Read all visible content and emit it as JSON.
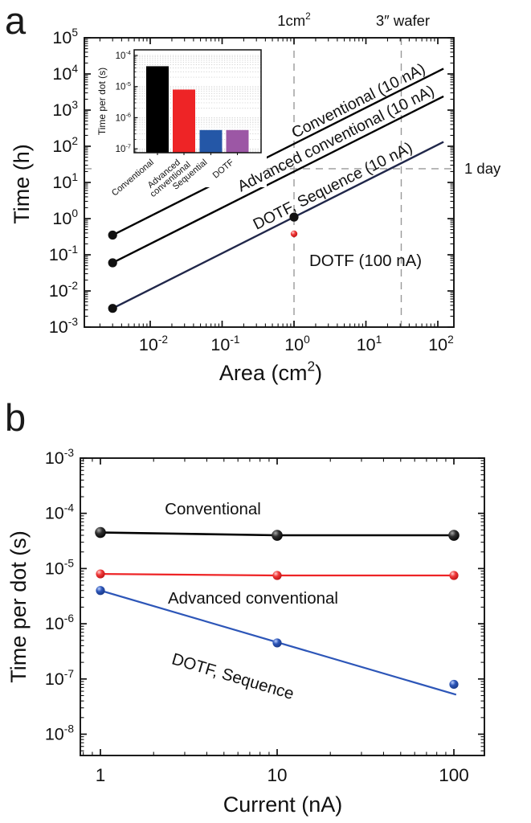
{
  "panels": {
    "a": {
      "letter": "a"
    },
    "b": {
      "letter": "b"
    }
  },
  "colors": {
    "black": "#000000",
    "red": "#ee2426",
    "blue": "#2d56b8",
    "navy_line": "#20274a",
    "purple": "#9c57a5",
    "inset_blue": "#2457a7",
    "dash_gray": "#999999"
  },
  "chart_data": [
    {
      "id": "panel-a",
      "type": "line",
      "xlabel": "Area (cm^{2})",
      "ylabel": "Time (h)",
      "xscale": "log",
      "yscale": "log",
      "xlim": [
        0.0012,
        165
      ],
      "ylim": [
        0.001,
        100000
      ],
      "x_tick_values": [
        0.01,
        0.1,
        1,
        10,
        100
      ],
      "x_tick_labels": [
        "10^{-2}",
        "10^{-1}",
        "10^{0}",
        "10^{1}",
        "10^{2}"
      ],
      "y_tick_values": [
        100000,
        10000,
        1000,
        100,
        10,
        1,
        0.1,
        0.01,
        0.001
      ],
      "y_tick_labels": [
        "10^{5}",
        "10^{4}",
        "10^{3}",
        "10^{2}",
        "10^{1}",
        "10^{0}",
        "10^{-1}",
        "10^{-2}",
        "10^{-3}"
      ],
      "grid": false,
      "series": [
        {
          "name": "Conventional (10 nA)",
          "color": "#000000",
          "line": {
            "x": [
              0.003,
              120
            ],
            "y": [
              0.35,
              14000
            ]
          },
          "points": {
            "x": [
              0.003
            ],
            "y": [
              0.35
            ]
          }
        },
        {
          "name": "Advanced conventional (10 nA)",
          "color": "#000000",
          "line": {
            "x": [
              0.003,
              120
            ],
            "y": [
              0.06,
              2400
            ]
          },
          "points": {
            "x": [
              0.003
            ],
            "y": [
              0.06
            ]
          }
        },
        {
          "name": "DOTF, Sequence (10 nA)",
          "color": "#20274a",
          "line": {
            "x": [
              0.003,
              120
            ],
            "y": [
              0.0033,
              132
            ]
          },
          "points": {
            "x": [
              0.003,
              1
            ],
            "y": [
              0.0033,
              1.1
            ]
          }
        },
        {
          "name": "DOTF (100 nA)",
          "color": "#ee2426",
          "points": {
            "x": [
              1
            ],
            "y": [
              0.38
            ]
          }
        }
      ],
      "reference_lines": {
        "vertical": [
          {
            "x": 1,
            "label": "1cm^{2}"
          },
          {
            "x": 31,
            "label": "3″ wafer"
          }
        ],
        "horizontal": [
          {
            "y": 24,
            "label": "1 day"
          }
        ]
      }
    },
    {
      "id": "panel-a-inset",
      "type": "bar",
      "ylabel": "Time per dot (s)",
      "yscale": "log",
      "ylim": [
        7.4e-08,
        0.00015
      ],
      "y_tick_values": [
        0.0001,
        1e-05,
        1e-06,
        1e-07
      ],
      "y_tick_labels": [
        "10^{-4}",
        "10^{-5}",
        "10^{-6}",
        "10^{-7}"
      ],
      "grid": true,
      "categories": [
        "Conventional",
        "Advanced\nconventional",
        "Sequential",
        "DOTF"
      ],
      "values": [
        4.5e-05,
        8e-06,
        4e-07,
        4e-07
      ],
      "bar_colors": [
        "#000000",
        "#ee2426",
        "#2457a7",
        "#9c57a5"
      ]
    },
    {
      "id": "panel-b",
      "type": "scatter",
      "xlabel": "Current (nA)",
      "ylabel": "Time per dot (s)",
      "xscale": "log",
      "yscale": "log",
      "xlim": [
        0.77,
        150
      ],
      "ylim": [
        4.2e-09,
        0.001
      ],
      "x_tick_values": [
        1,
        10,
        100
      ],
      "x_tick_labels": [
        "1",
        "10",
        "100"
      ],
      "y_tick_values": [
        0.001,
        0.0001,
        1e-05,
        1e-06,
        1e-07,
        1e-08
      ],
      "y_tick_labels": [
        "10^{-3}",
        "10^{-4}",
        "10^{-5}",
        "10^{-6}",
        "10^{-7}",
        "10^{-8}"
      ],
      "grid": false,
      "series": [
        {
          "name": "Conventional",
          "color": "#000000",
          "x": [
            1,
            10,
            100
          ],
          "y": [
            4.5e-05,
            4e-05,
            4e-05
          ],
          "connect": true
        },
        {
          "name": "Advanced conventional",
          "color": "#ee2426",
          "x": [
            1,
            10,
            100
          ],
          "y": [
            8e-06,
            7.5e-06,
            7.5e-06
          ],
          "connect": true
        },
        {
          "name": "DOTF, Sequence",
          "color": "#2d56b8",
          "x": [
            1,
            10,
            100
          ],
          "y": [
            4e-06,
            4.5e-07,
            8e-08
          ],
          "connect": false,
          "fit_line": {
            "x": [
              1,
              103
            ],
            "y": [
              4e-06,
              5.2e-08
            ]
          }
        }
      ]
    }
  ]
}
